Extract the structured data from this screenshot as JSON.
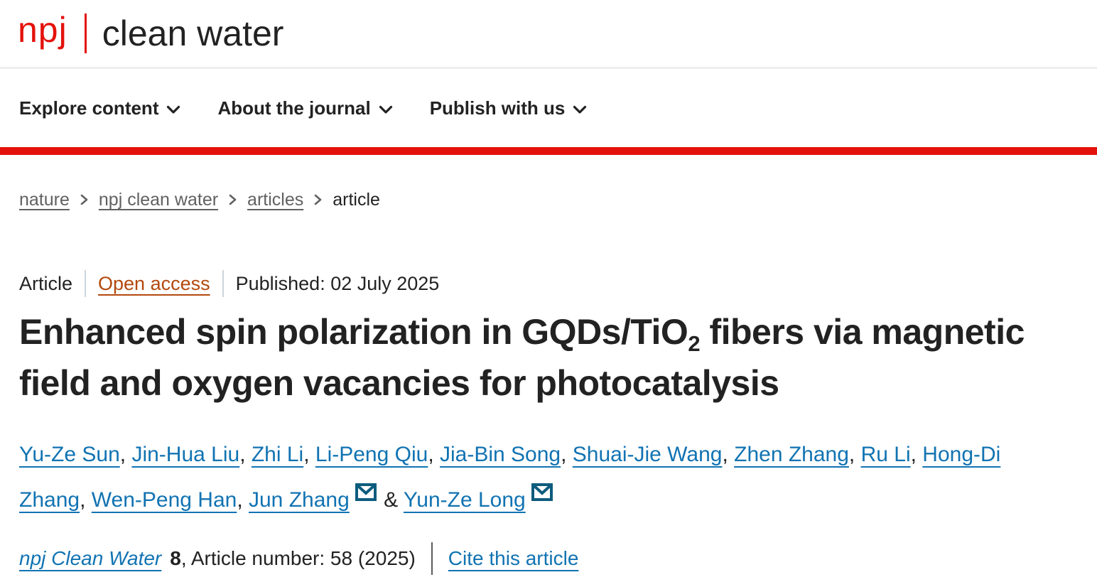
{
  "header": {
    "logo": {
      "prefix": "npj",
      "title": "clean water"
    }
  },
  "nav": {
    "items": [
      {
        "label": "Explore content"
      },
      {
        "label": "About the journal"
      },
      {
        "label": "Publish with us"
      }
    ]
  },
  "breadcrumb": {
    "items": [
      {
        "label": "nature"
      },
      {
        "label": "npj clean water"
      },
      {
        "label": "articles"
      },
      {
        "label": "article"
      }
    ]
  },
  "meta": {
    "type": "Article",
    "access": "Open access",
    "published": "Published: 02 July 2025"
  },
  "title": {
    "part1": "Enhanced spin polarization in GQDs/TiO",
    "subscript": "2",
    "part2": " fibers via magnetic field and oxygen vacancies for photocatalysis"
  },
  "authors": {
    "list": [
      {
        "name": "Yu-Ze Sun",
        "email": false
      },
      {
        "name": "Jin-Hua Liu",
        "email": false
      },
      {
        "name": "Zhi Li",
        "email": false
      },
      {
        "name": "Li-Peng Qiu",
        "email": false
      },
      {
        "name": "Jia-Bin Song",
        "email": false
      },
      {
        "name": "Shuai-Jie Wang",
        "email": false
      },
      {
        "name": "Zhen Zhang",
        "email": false
      },
      {
        "name": "Ru Li",
        "email": false
      },
      {
        "name": "Hong-Di Zhang",
        "email": false
      },
      {
        "name": "Wen-Peng Han",
        "email": false
      },
      {
        "name": "Jun Zhang",
        "email": true
      },
      {
        "name": "Yun-Ze Long",
        "email": true
      }
    ],
    "separator": ", ",
    "last_separator": " & "
  },
  "citation": {
    "journal": "npj Clean Water",
    "volume": "8",
    "text": ", Article number: 58 (2025)",
    "cite_label": "Cite this article"
  },
  "colors": {
    "brand_red": "#e3120b",
    "link_blue": "#1173b2",
    "open_access_orange": "#b3490e",
    "text_dark": "#222222",
    "breadcrumb_gray": "#616161",
    "email_icon_blue": "#0d5c7e"
  }
}
